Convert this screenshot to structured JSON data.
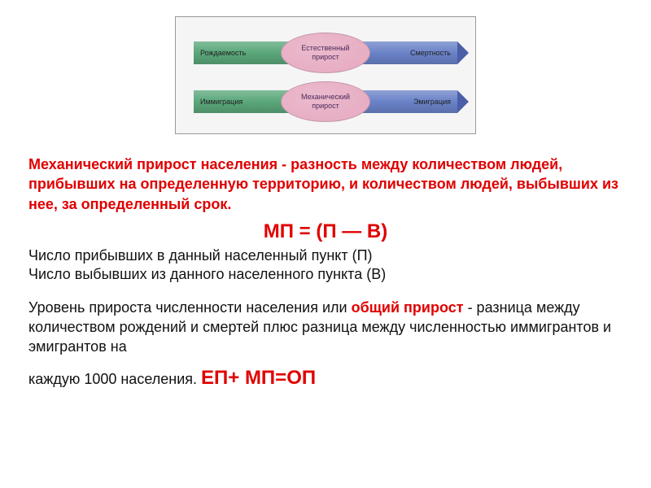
{
  "diagram": {
    "row1": {
      "left_label": "Рождаемость",
      "center_label": "Естественный\nприрост",
      "right_label": "Смертность",
      "left_fill": "#5aa77a",
      "right_fill": "#6a82c8",
      "head_color": "#4a5fa8",
      "oval_fill": "#e6a9c0"
    },
    "row2": {
      "left_label": "Иммиграция",
      "center_label": "Механический\nприрост",
      "right_label": "Эмиграция",
      "left_fill": "#5aa77a",
      "right_fill": "#6a82c8",
      "head_color": "#4a5fa8",
      "oval_fill": "#e6a9c0"
    },
    "bg": "#f5f5f5",
    "border": "#999999"
  },
  "text": {
    "definition": "Механический прирост населения  - разность между количеством людей, прибывших на определенную территорию, и количеством людей, выбывших из нее, за определенный срок.",
    "formula1": "МП = (П — В)",
    "legend1": "Число прибывших в данный населенный пункт (П)",
    "legend2": "Число выбывших из данного населенного пункта (В)",
    "para_start": "Уровень прироста численности населения  или ",
    "para_red": "общий прирост",
    "para_mid": " - разница между количеством рождений и смертей плюс разница между численностью иммигрантов и эмигрантов на",
    "para_last_prefix": "каждую 1000 населения. ",
    "formula2": "ЕП+ МП=ОП"
  },
  "colors": {
    "red": "#e00000",
    "black": "#111111"
  }
}
